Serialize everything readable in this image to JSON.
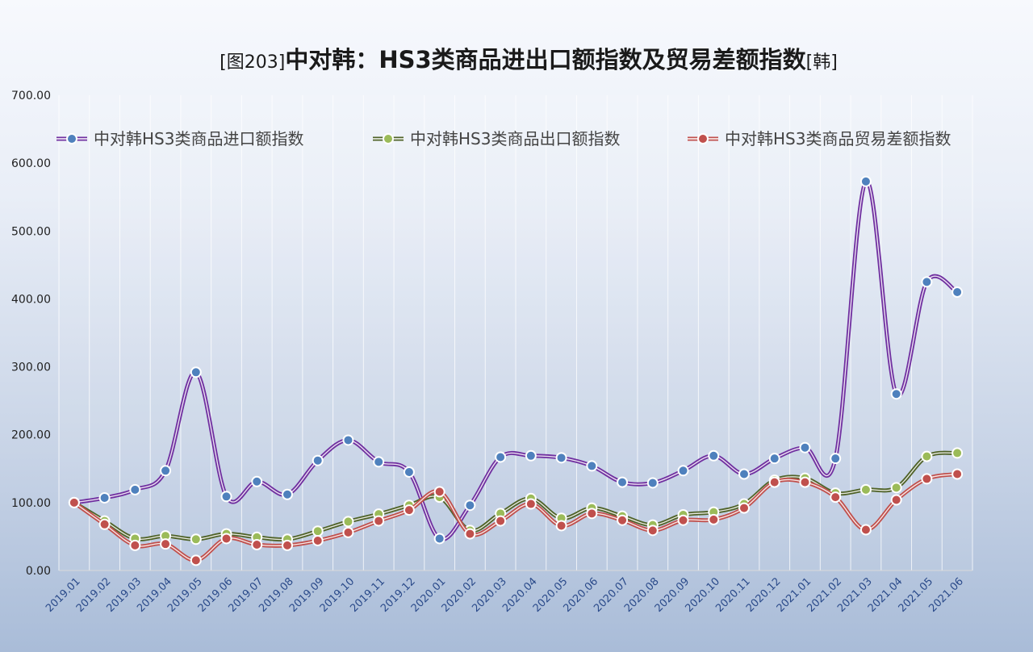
{
  "chart_data": {
    "type": "line",
    "title": {
      "prefix": "[图203]",
      "main": "中对韩：HS3类商品进出口额指数及贸易差额指数",
      "suffix": "[韩]"
    },
    "categories": [
      "2019.01",
      "2019.02",
      "2019.03",
      "2019.04",
      "2019.05",
      "2019.06",
      "2019.07",
      "2019.08",
      "2019.09",
      "2019.10",
      "2019.11",
      "2019.12",
      "2020.01",
      "2020.02",
      "2020.03",
      "2020.04",
      "2020.05",
      "2020.06",
      "2020.07",
      "2020.08",
      "2020.09",
      "2020.10",
      "2020.11",
      "2020.12",
      "2021.01",
      "2021.02",
      "2021.03",
      "2021.04",
      "2021.05",
      "2021.06"
    ],
    "ylim": [
      0,
      700
    ],
    "yticks": [
      "0.00",
      "100.00",
      "200.00",
      "300.00",
      "400.00",
      "500.00",
      "600.00",
      "700.00"
    ],
    "grid": "vertical",
    "legend_position": "top",
    "series": [
      {
        "name": "中对韩HS3类商品进口额指数",
        "color": "#7030a0",
        "marker": "#4f81bd",
        "values": [
          100,
          107,
          119,
          147,
          292,
          109,
          131,
          112,
          162,
          192,
          160,
          145,
          47,
          96,
          167,
          169,
          166,
          154,
          130,
          129,
          147,
          169,
          142,
          165,
          181,
          165,
          573,
          260,
          425,
          410
        ]
      },
      {
        "name": "中对韩HS3类商品出口额指数",
        "color": "#4f6228",
        "marker": "#9bbb59",
        "values": [
          100,
          73,
          47,
          51,
          46,
          54,
          49,
          46,
          58,
          72,
          83,
          96,
          108,
          59,
          84,
          106,
          77,
          92,
          80,
          67,
          82,
          86,
          98,
          133,
          136,
          114,
          119,
          122,
          168,
          173
        ]
      },
      {
        "name": "中对韩HS3类商品贸易差额指数",
        "color": "#c0504d",
        "marker": "#c0504d",
        "values": [
          100,
          68,
          37,
          39,
          15,
          47,
          38,
          37,
          44,
          56,
          73,
          89,
          116,
          54,
          73,
          98,
          66,
          84,
          74,
          59,
          74,
          75,
          92,
          130,
          130,
          108,
          60,
          104,
          135,
          142
        ]
      }
    ]
  }
}
